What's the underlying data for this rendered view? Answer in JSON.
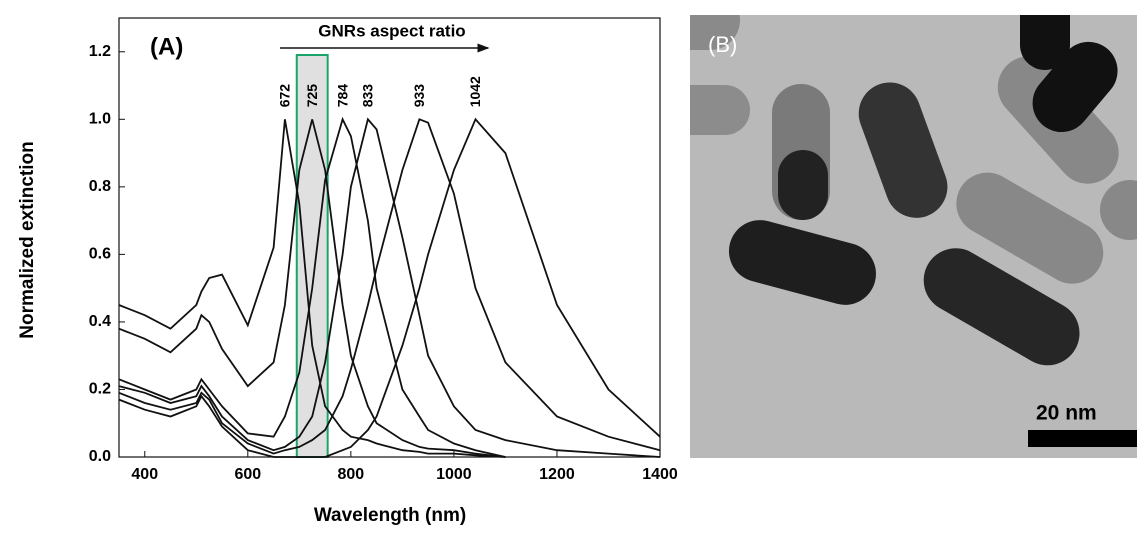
{
  "chart_data": {
    "type": "line",
    "panel_label": "(A)",
    "annotation": "GNRs aspect ratio",
    "x_label": "Wavelength (nm)",
    "y_label": "Normalized extinction",
    "xlim": [
      350,
      1400
    ],
    "ylim": [
      0,
      1.3
    ],
    "xticks": [
      400,
      600,
      800,
      1000,
      1200,
      1400
    ],
    "yticks": [
      {
        "value": 0,
        "label": "0.0"
      },
      0.2,
      0.4,
      0.6,
      0.8,
      {
        "value": 1,
        "label": "1.0"
      },
      1.2
    ],
    "highlight_range": [
      695,
      755
    ],
    "x": [
      350,
      400,
      450,
      500,
      510,
      525,
      550,
      600,
      650,
      672,
      700,
      725,
      750,
      784,
      800,
      833,
      850,
      900,
      933,
      950,
      1000,
      1042,
      1100,
      1200,
      1300,
      1400
    ],
    "series": [
      {
        "name": "672",
        "color": "#111111",
        "values": [
          0.45,
          0.42,
          0.38,
          0.45,
          0.49,
          0.53,
          0.54,
          0.39,
          0.62,
          1.0,
          0.75,
          0.33,
          0.15,
          0.08,
          0.06,
          0.05,
          0.04,
          0.02,
          0.015,
          0.01,
          0.01,
          0.005,
          0,
          null,
          null,
          null
        ]
      },
      {
        "name": "725",
        "color": "#111111",
        "values": [
          0.38,
          0.35,
          0.31,
          0.38,
          0.42,
          0.4,
          0.32,
          0.21,
          0.28,
          0.45,
          0.85,
          1.0,
          0.85,
          0.45,
          0.3,
          0.15,
          0.1,
          0.05,
          0.03,
          0.025,
          0.02,
          0.01,
          0,
          null,
          null,
          null
        ]
      },
      {
        "name": "784",
        "color": "#111111",
        "values": [
          0.23,
          0.2,
          0.17,
          0.2,
          0.23,
          0.2,
          0.15,
          0.07,
          0.06,
          0.12,
          0.25,
          0.5,
          0.82,
          1.0,
          0.95,
          0.7,
          0.5,
          0.2,
          0.12,
          0.08,
          0.04,
          0.02,
          0,
          null,
          null,
          null
        ]
      },
      {
        "name": "833",
        "color": "#111111",
        "values": [
          0.21,
          0.19,
          0.16,
          0.18,
          0.21,
          0.18,
          0.12,
          0.05,
          0.02,
          0.03,
          0.06,
          0.12,
          0.28,
          0.6,
          0.8,
          1.0,
          0.97,
          0.65,
          0.42,
          0.3,
          0.15,
          0.08,
          0.05,
          0.02,
          0.01,
          0
        ]
      },
      {
        "name": "933",
        "color": "#111111",
        "values": [
          0.19,
          0.16,
          0.14,
          0.16,
          0.19,
          0.17,
          0.1,
          0.04,
          0.01,
          0.02,
          0.03,
          0.05,
          0.08,
          0.18,
          0.26,
          0.45,
          0.56,
          0.85,
          1.0,
          0.99,
          0.78,
          0.5,
          0.28,
          0.12,
          0.06,
          0.02
        ]
      },
      {
        "name": "1042",
        "color": "#111111",
        "values": [
          0.17,
          0.14,
          0.12,
          0.15,
          0.18,
          0.15,
          0.09,
          0.02,
          0,
          0,
          0,
          0,
          0,
          0.02,
          0.03,
          0.08,
          0.12,
          0.33,
          0.5,
          0.6,
          0.85,
          1.0,
          0.9,
          0.45,
          0.2,
          0.06
        ]
      }
    ]
  },
  "image_panel": {
    "label": "(B)",
    "scale_bar": "20 nm"
  }
}
